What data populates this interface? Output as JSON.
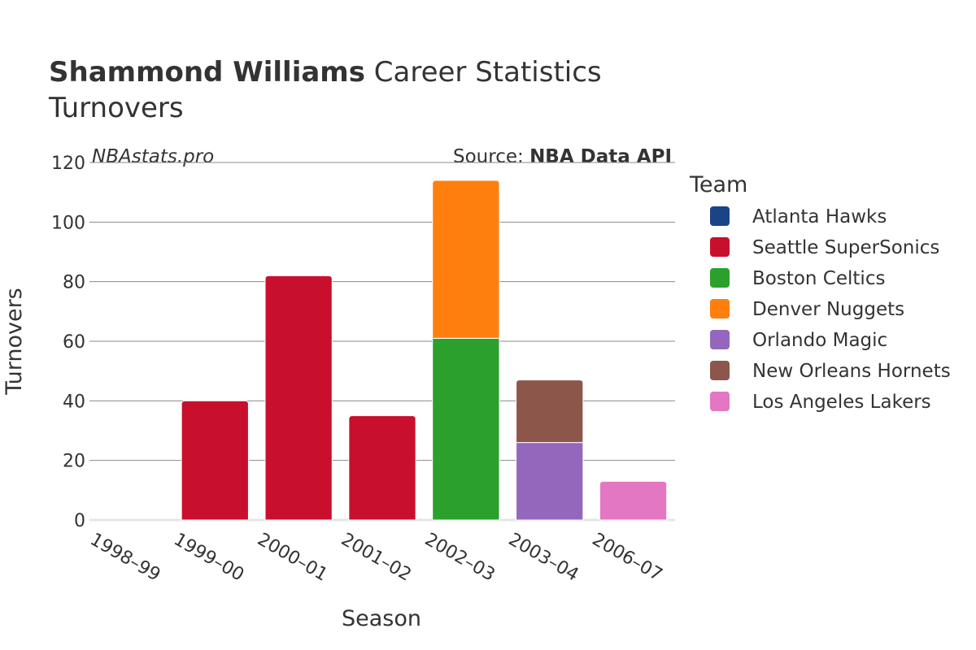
{
  "title": {
    "bold": "Shammond Williams",
    "rest": "Career Statistics",
    "subtitle": "Turnovers"
  },
  "watermark": "NBAstats.pro",
  "source": {
    "prefix": "Source: ",
    "name": "NBA Data API"
  },
  "legend": {
    "title": "Team"
  },
  "colors": {
    "Atlanta Hawks": "#1a4388",
    "Seattle SuperSonics": "#c8102e",
    "Boston Celtics": "#2ca02c",
    "Denver Nuggets": "#ff7f0e",
    "Orlando Magic": "#9467bd",
    "New Orleans Hornets": "#8c564b",
    "Los Angeles Lakers": "#e377c2"
  },
  "chart_data": {
    "type": "bar",
    "stacked": true,
    "title": "Shammond Williams Career Statistics",
    "subtitle": "Turnovers",
    "xlabel": "Season",
    "ylabel": "Turnovers",
    "ylim": [
      0,
      120
    ],
    "yticks": [
      0,
      20,
      40,
      60,
      80,
      100,
      120
    ],
    "categories": [
      "1998–99",
      "1999–00",
      "2000–01",
      "2001–02",
      "2002–03",
      "2003–04",
      "2006–07"
    ],
    "series": [
      {
        "name": "Atlanta Hawks",
        "values": [
          0,
          0,
          0,
          0,
          0,
          0,
          0
        ]
      },
      {
        "name": "Seattle SuperSonics",
        "values": [
          0,
          40,
          82,
          35,
          0,
          0,
          0
        ]
      },
      {
        "name": "Boston Celtics",
        "values": [
          0,
          0,
          0,
          0,
          61,
          0,
          0
        ]
      },
      {
        "name": "Denver Nuggets",
        "values": [
          0,
          0,
          0,
          0,
          53,
          0,
          0
        ]
      },
      {
        "name": "Orlando Magic",
        "values": [
          0,
          0,
          0,
          0,
          0,
          26,
          0
        ]
      },
      {
        "name": "New Orleans Hornets",
        "values": [
          0,
          0,
          0,
          0,
          0,
          21,
          0
        ]
      },
      {
        "name": "Los Angeles Lakers",
        "values": [
          0,
          0,
          0,
          0,
          0,
          0,
          13
        ]
      }
    ]
  }
}
